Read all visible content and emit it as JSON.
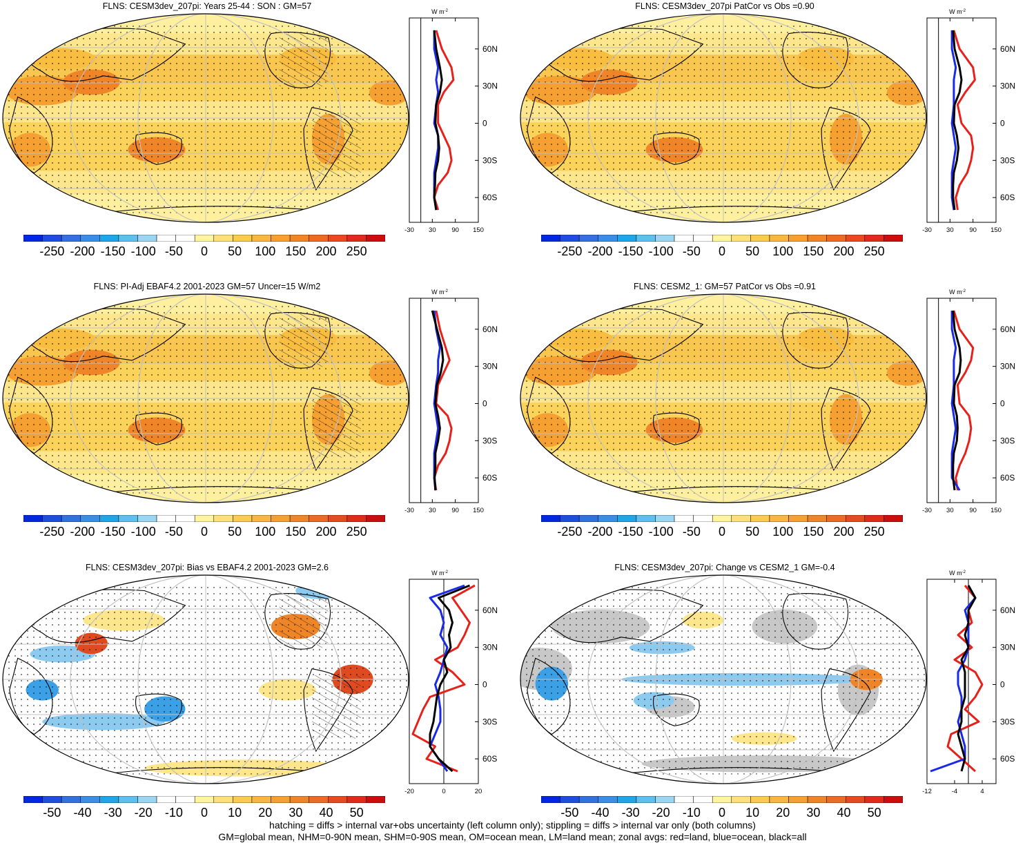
{
  "footer": {
    "line1": "hatching = diffs > internal var+obs uncertainty (left column only); stippling = diffs > internal var only (both columns)",
    "line2": "GM=global mean, NHM=0-90N mean, SHM=0-90S mean, OM=ocean mean, LM=land mean; zonal avgs: red=land, blue=ocean, black=all"
  },
  "units_label": "W m",
  "units_sup": "-2",
  "lat_labels": [
    "60N",
    "30N",
    "0",
    "30S",
    "60S"
  ],
  "colors": {
    "land": "#e8201a",
    "ocean": "#1a2ae8",
    "all": "#000000",
    "continent_fill": "#c8c8c8"
  },
  "chart_data": [
    {
      "type": "heatmap",
      "title": "FLNS: CESM3dev_207pi: Years 25-44 : SON : GM=57",
      "colorbar": [
        "-250",
        "-200",
        "-150",
        "-100",
        "-50",
        "0",
        "50",
        "100",
        "150",
        "200",
        "250"
      ],
      "zonal_xticks": [
        "-30",
        "30",
        "90",
        "150"
      ],
      "zonal_xlim": [
        -30,
        150
      ],
      "zonal_land": [
        [
          75,
          40
        ],
        [
          60,
          55
        ],
        [
          45,
          80
        ],
        [
          35,
          85
        ],
        [
          25,
          60
        ],
        [
          15,
          45
        ],
        [
          0,
          45
        ],
        [
          -10,
          60
        ],
        [
          -20,
          75
        ],
        [
          -30,
          80
        ],
        [
          -40,
          70
        ],
        [
          -50,
          45
        ],
        [
          -60,
          35
        ],
        [
          -70,
          45
        ]
      ],
      "zonal_ocean": [
        [
          75,
          35
        ],
        [
          60,
          35
        ],
        [
          45,
          45
        ],
        [
          35,
          40
        ],
        [
          25,
          45
        ],
        [
          15,
          40
        ],
        [
          0,
          35
        ],
        [
          -10,
          45
        ],
        [
          -20,
          45
        ],
        [
          -30,
          40
        ],
        [
          -40,
          35
        ],
        [
          -50,
          35
        ],
        [
          -60,
          35
        ],
        [
          -70,
          40
        ]
      ],
      "zonal_all": [
        [
          75,
          35
        ],
        [
          60,
          40
        ],
        [
          45,
          50
        ],
        [
          35,
          55
        ],
        [
          25,
          50
        ],
        [
          15,
          40
        ],
        [
          0,
          38
        ],
        [
          -10,
          45
        ],
        [
          -20,
          48
        ],
        [
          -30,
          45
        ],
        [
          -40,
          38
        ],
        [
          -50,
          37
        ],
        [
          -60,
          35
        ],
        [
          -70,
          40
        ]
      ]
    },
    {
      "type": "heatmap",
      "title": "FLNS: CESM3dev_207pi PatCor vs Obs =0.90",
      "colorbar": [
        "-250",
        "-200",
        "-150",
        "-100",
        "-50",
        "0",
        "50",
        "100",
        "150",
        "200",
        "250"
      ],
      "zonal_xticks": [
        "-30",
        "30",
        "90",
        "150"
      ],
      "zonal_xlim": [
        -30,
        150
      ],
      "zonal_land": [
        [
          75,
          40
        ],
        [
          60,
          55
        ],
        [
          45,
          90
        ],
        [
          35,
          95
        ],
        [
          25,
          70
        ],
        [
          15,
          50
        ],
        [
          0,
          60
        ],
        [
          -10,
          85
        ],
        [
          -20,
          90
        ],
        [
          -30,
          85
        ],
        [
          -40,
          75
        ],
        [
          -50,
          55
        ],
        [
          -60,
          45
        ],
        [
          -70,
          50
        ]
      ],
      "zonal_ocean": [
        [
          75,
          35
        ],
        [
          60,
          35
        ],
        [
          45,
          45
        ],
        [
          35,
          40
        ],
        [
          25,
          40
        ],
        [
          15,
          40
        ],
        [
          0,
          35
        ],
        [
          -10,
          40
        ],
        [
          -20,
          45
        ],
        [
          -30,
          40
        ],
        [
          -40,
          35
        ],
        [
          -50,
          35
        ],
        [
          -60,
          35
        ],
        [
          -70,
          40
        ]
      ],
      "zonal_all": [
        [
          75,
          38
        ],
        [
          60,
          42
        ],
        [
          45,
          55
        ],
        [
          35,
          60
        ],
        [
          25,
          55
        ],
        [
          15,
          42
        ],
        [
          0,
          40
        ],
        [
          -10,
          48
        ],
        [
          -20,
          52
        ],
        [
          -30,
          48
        ],
        [
          -40,
          40
        ],
        [
          -50,
          38
        ],
        [
          -60,
          38
        ],
        [
          -70,
          42
        ]
      ]
    },
    {
      "type": "heatmap",
      "title": "FLNS: PI-Adj EBAF4.2 2001-2023 GM=57 Uncer=15 W/m2",
      "colorbar": [
        "-250",
        "-200",
        "-150",
        "-100",
        "-50",
        "0",
        "50",
        "100",
        "150",
        "200",
        "250"
      ],
      "zonal_xticks": [
        "-30",
        "30",
        "90",
        "150"
      ],
      "zonal_xlim": [
        -30,
        150
      ],
      "zonal_land": [
        [
          75,
          40
        ],
        [
          60,
          50
        ],
        [
          45,
          65
        ],
        [
          35,
          75
        ],
        [
          25,
          60
        ],
        [
          15,
          45
        ],
        [
          0,
          40
        ],
        [
          -10,
          70
        ],
        [
          -20,
          80
        ],
        [
          -30,
          75
        ],
        [
          -40,
          65
        ],
        [
          -50,
          45
        ],
        [
          -60,
          35
        ],
        [
          -70,
          40
        ]
      ],
      "zonal_ocean": [
        [
          75,
          35
        ],
        [
          60,
          40
        ],
        [
          45,
          50
        ],
        [
          35,
          45
        ],
        [
          25,
          45
        ],
        [
          15,
          40
        ],
        [
          0,
          35
        ],
        [
          -10,
          40
        ],
        [
          -20,
          45
        ],
        [
          -30,
          40
        ],
        [
          -40,
          35
        ],
        [
          -50,
          35
        ],
        [
          -60,
          35
        ],
        [
          -70,
          38
        ]
      ],
      "zonal_all": [
        [
          75,
          30
        ],
        [
          60,
          42
        ],
        [
          45,
          55
        ],
        [
          35,
          58
        ],
        [
          25,
          52
        ],
        [
          15,
          42
        ],
        [
          0,
          38
        ],
        [
          -10,
          45
        ],
        [
          -20,
          50
        ],
        [
          -30,
          45
        ],
        [
          -40,
          38
        ],
        [
          -50,
          38
        ],
        [
          -60,
          36
        ],
        [
          -70,
          38
        ]
      ]
    },
    {
      "type": "heatmap",
      "title": "FLNS: CESM2_1: GM=57 PatCor vs Obs =0.91",
      "colorbar": [
        "-250",
        "-200",
        "-150",
        "-100",
        "-50",
        "0",
        "50",
        "100",
        "150",
        "200",
        "250"
      ],
      "zonal_xticks": [
        "-30",
        "30",
        "90",
        "150"
      ],
      "zonal_xlim": [
        -30,
        150
      ],
      "zonal_land": [
        [
          75,
          40
        ],
        [
          60,
          55
        ],
        [
          45,
          90
        ],
        [
          35,
          85
        ],
        [
          25,
          70
        ],
        [
          15,
          50
        ],
        [
          0,
          55
        ],
        [
          -10,
          80
        ],
        [
          -20,
          85
        ],
        [
          -30,
          80
        ],
        [
          -40,
          70
        ],
        [
          -50,
          55
        ],
        [
          -60,
          45
        ],
        [
          -70,
          50
        ]
      ],
      "zonal_ocean": [
        [
          75,
          35
        ],
        [
          60,
          35
        ],
        [
          45,
          45
        ],
        [
          35,
          40
        ],
        [
          25,
          40
        ],
        [
          15,
          40
        ],
        [
          0,
          35
        ],
        [
          -10,
          40
        ],
        [
          -20,
          45
        ],
        [
          -30,
          40
        ],
        [
          -40,
          35
        ],
        [
          -50,
          35
        ],
        [
          -60,
          35
        ],
        [
          -70,
          55
        ]
      ],
      "zonal_all": [
        [
          75,
          38
        ],
        [
          60,
          42
        ],
        [
          45,
          55
        ],
        [
          35,
          58
        ],
        [
          25,
          55
        ],
        [
          15,
          42
        ],
        [
          0,
          40
        ],
        [
          -10,
          48
        ],
        [
          -20,
          50
        ],
        [
          -30,
          48
        ],
        [
          -40,
          40
        ],
        [
          -50,
          38
        ],
        [
          -60,
          38
        ],
        [
          -70,
          42
        ]
      ]
    },
    {
      "type": "heatmap",
      "title": "FLNS: CESM3dev_207pi: Bias vs EBAF4.2 2001-2023  GM=2.6",
      "colorbar": [
        "-50",
        "-40",
        "-30",
        "-20",
        "-10",
        "0",
        "10",
        "20",
        "30",
        "40",
        "50"
      ],
      "zonal_xticks": [
        "-20",
        "0",
        "20"
      ],
      "zonal_xlim": [
        -20,
        20
      ],
      "zonal_land": [
        [
          80,
          18
        ],
        [
          70,
          5
        ],
        [
          60,
          10
        ],
        [
          50,
          15
        ],
        [
          40,
          12
        ],
        [
          30,
          8
        ],
        [
          20,
          -5
        ],
        [
          10,
          5
        ],
        [
          0,
          12
        ],
        [
          -10,
          -8
        ],
        [
          -20,
          -12
        ],
        [
          -30,
          -15
        ],
        [
          -40,
          -18
        ],
        [
          -50,
          -5
        ],
        [
          -60,
          -10
        ],
        [
          -70,
          8
        ]
      ],
      "zonal_ocean": [
        [
          80,
          12
        ],
        [
          70,
          -8
        ],
        [
          60,
          -2
        ],
        [
          50,
          0
        ],
        [
          40,
          -2
        ],
        [
          30,
          2
        ],
        [
          20,
          0
        ],
        [
          10,
          -2
        ],
        [
          0,
          -5
        ],
        [
          -10,
          -3
        ],
        [
          -20,
          -2
        ],
        [
          -30,
          -2
        ],
        [
          -40,
          -5
        ],
        [
          -50,
          -8
        ],
        [
          -60,
          -3
        ],
        [
          -70,
          2
        ]
      ],
      "zonal_all": [
        [
          80,
          15
        ],
        [
          70,
          -3
        ],
        [
          60,
          3
        ],
        [
          50,
          5
        ],
        [
          40,
          3
        ],
        [
          30,
          4
        ],
        [
          20,
          0
        ],
        [
          10,
          2
        ],
        [
          0,
          -2
        ],
        [
          -10,
          -4
        ],
        [
          -20,
          -5
        ],
        [
          -30,
          -6
        ],
        [
          -40,
          -8
        ],
        [
          -50,
          -8
        ],
        [
          -60,
          -3
        ],
        [
          -70,
          5
        ]
      ]
    },
    {
      "type": "heatmap",
      "title": "FLNS: CESM3dev_207pi: Change vs CESM2_1 GM=-0.4",
      "colorbar": [
        "-50",
        "-40",
        "-30",
        "-20",
        "-10",
        "0",
        "10",
        "20",
        "30",
        "40",
        "50"
      ],
      "zonal_xticks": [
        "-12",
        "-4",
        "4"
      ],
      "zonal_xlim": [
        -12,
        8
      ],
      "zonal_land": [
        [
          80,
          -1
        ],
        [
          70,
          2
        ],
        [
          60,
          0
        ],
        [
          50,
          1
        ],
        [
          40,
          -3
        ],
        [
          30,
          1
        ],
        [
          20,
          -4
        ],
        [
          10,
          2
        ],
        [
          0,
          4
        ],
        [
          -10,
          2
        ],
        [
          -20,
          -1
        ],
        [
          -30,
          3
        ],
        [
          -40,
          -5
        ],
        [
          -50,
          -6
        ],
        [
          -60,
          -2
        ],
        [
          -70,
          2
        ]
      ],
      "zonal_ocean": [
        [
          80,
          0
        ],
        [
          70,
          2
        ],
        [
          60,
          -1
        ],
        [
          50,
          0
        ],
        [
          40,
          0
        ],
        [
          30,
          0
        ],
        [
          20,
          -1
        ],
        [
          10,
          -3
        ],
        [
          0,
          -3
        ],
        [
          -10,
          -2
        ],
        [
          -20,
          -2
        ],
        [
          -30,
          -3
        ],
        [
          -40,
          -2
        ],
        [
          -50,
          -1
        ],
        [
          -60,
          -1
        ],
        [
          -70,
          -11
        ]
      ],
      "zonal_all": [
        [
          80,
          0
        ],
        [
          70,
          2
        ],
        [
          60,
          0
        ],
        [
          50,
          0
        ],
        [
          40,
          -1
        ],
        [
          30,
          0
        ],
        [
          20,
          -2
        ],
        [
          10,
          -1
        ],
        [
          0,
          -1
        ],
        [
          -10,
          -1
        ],
        [
          -20,
          -2
        ],
        [
          -30,
          -2
        ],
        [
          -40,
          -3
        ],
        [
          -50,
          -2
        ],
        [
          -60,
          -1
        ],
        [
          -70,
          -2
        ]
      ]
    }
  ]
}
